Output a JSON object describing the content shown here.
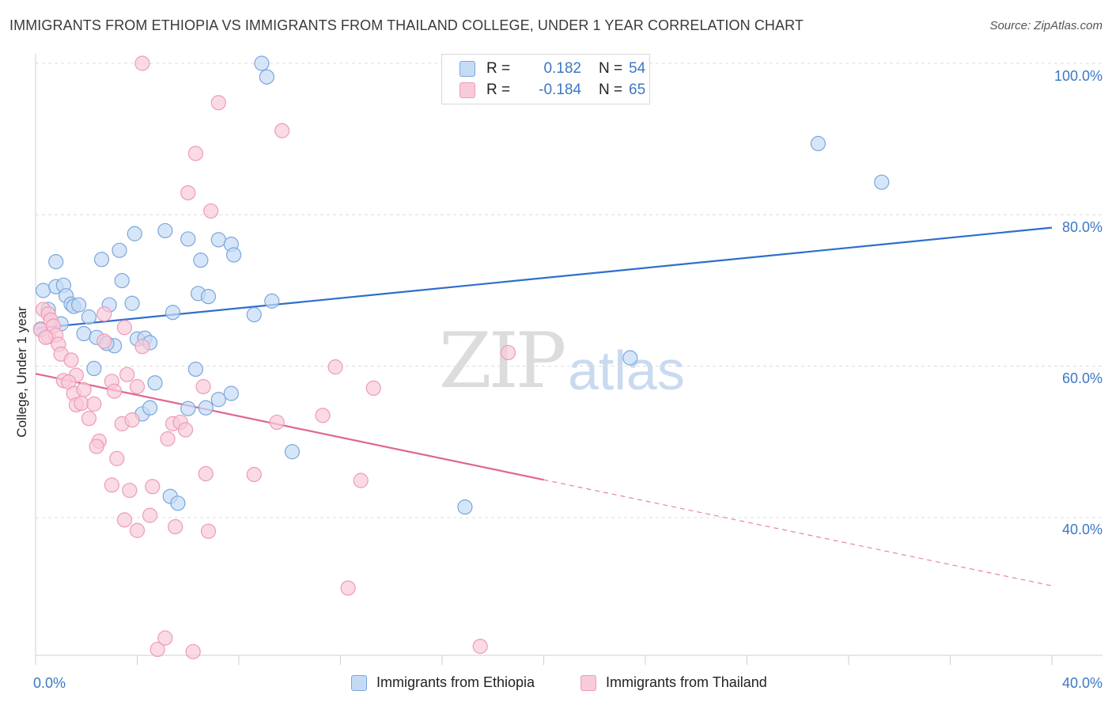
{
  "header": {
    "title": "IMMIGRANTS FROM ETHIOPIA VS IMMIGRANTS FROM THAILAND COLLEGE, UNDER 1 YEAR CORRELATION CHART",
    "source": "Source: ZipAtlas.com"
  },
  "watermark": {
    "zip": "ZIP",
    "atlas": "atlas"
  },
  "legend": {
    "rows": [
      {
        "r_label": "R =",
        "r_value": "0.182",
        "n_label": "N =",
        "n_value": "54"
      },
      {
        "r_label": "R =",
        "r_value": "-0.184",
        "n_label": "N =",
        "n_value": "65"
      }
    ]
  },
  "colors": {
    "ethiopia_fill": "#c5dbf5",
    "ethiopia_stroke": "#7aa6dd",
    "ethiopia_line": "#2e6fcc",
    "thailand_fill": "#f8cbd9",
    "thailand_stroke": "#ee9bb6",
    "thailand_line": "#e06690",
    "tick_text": "#3b78c4"
  },
  "chart_data": {
    "type": "scatter",
    "title": "IMMIGRANTS FROM ETHIOPIA VS IMMIGRANTS FROM THAILAND COLLEGE, UNDER 1 YEAR CORRELATION CHART",
    "xlabel": "",
    "ylabel": "College, Under 1 year",
    "xlim": [
      0,
      40
    ],
    "ylim": [
      20,
      102
    ],
    "x_tick_labels": [
      "0.0%",
      "40.0%"
    ],
    "y_ticks": [
      40,
      60,
      80,
      100
    ],
    "y_tick_labels": [
      "40.0%",
      "60.0%",
      "80.0%",
      "100.0%"
    ],
    "grid": true,
    "legend_position": "top-center",
    "series": [
      {
        "name": "Immigrants from Ethiopia",
        "r": 0.182,
        "n": 54,
        "trend": {
          "x": [
            0,
            40
          ],
          "y": [
            65.0,
            78.3
          ]
        },
        "points": [
          [
            0.3,
            70.0
          ],
          [
            0.5,
            67.5
          ],
          [
            0.8,
            70.5
          ],
          [
            0.8,
            73.8
          ],
          [
            1.1,
            70.7
          ],
          [
            1.2,
            69.3
          ],
          [
            1.4,
            68.2
          ],
          [
            1.5,
            67.9
          ],
          [
            1.7,
            68.1
          ],
          [
            2.1,
            66.5
          ],
          [
            1.9,
            64.3
          ],
          [
            2.4,
            63.8
          ],
          [
            2.3,
            59.7
          ],
          [
            2.6,
            74.1
          ],
          [
            2.9,
            68.1
          ],
          [
            3.1,
            62.7
          ],
          [
            3.3,
            75.3
          ],
          [
            3.4,
            71.3
          ],
          [
            3.8,
            68.3
          ],
          [
            3.9,
            77.5
          ],
          [
            4.0,
            63.6
          ],
          [
            4.3,
            63.7
          ],
          [
            4.2,
            53.7
          ],
          [
            4.5,
            63.1
          ],
          [
            4.7,
            57.8
          ],
          [
            4.5,
            54.5
          ],
          [
            5.1,
            77.9
          ],
          [
            5.4,
            67.1
          ],
          [
            5.3,
            42.8
          ],
          [
            5.6,
            41.9
          ],
          [
            6.0,
            76.8
          ],
          [
            6.0,
            54.4
          ],
          [
            6.3,
            59.6
          ],
          [
            6.4,
            69.6
          ],
          [
            6.5,
            74.0
          ],
          [
            6.8,
            69.2
          ],
          [
            6.7,
            54.5
          ],
          [
            7.2,
            76.7
          ],
          [
            7.2,
            55.6
          ],
          [
            7.7,
            76.1
          ],
          [
            7.8,
            74.7
          ],
          [
            7.7,
            56.4
          ],
          [
            8.6,
            66.8
          ],
          [
            8.9,
            100.0
          ],
          [
            9.1,
            98.2
          ],
          [
            9.3,
            68.6
          ],
          [
            10.1,
            48.7
          ],
          [
            16.9,
            41.4
          ],
          [
            23.4,
            61.1
          ],
          [
            30.8,
            89.4
          ],
          [
            33.3,
            84.3
          ],
          [
            0.2,
            64.9
          ],
          [
            1.0,
            65.6
          ],
          [
            2.8,
            63.0
          ]
        ]
      },
      {
        "name": "Immigrants from Thailand",
        "r": -0.184,
        "n": 65,
        "trend": {
          "x": [
            0,
            20
          ],
          "y": [
            59.0,
            45.0
          ]
        },
        "trend_dashed": {
          "x": [
            20,
            40
          ],
          "y": [
            45.0,
            31.0
          ]
        },
        "points": [
          [
            0.2,
            64.8
          ],
          [
            0.3,
            67.5
          ],
          [
            0.5,
            66.9
          ],
          [
            0.6,
            66.1
          ],
          [
            0.5,
            63.9
          ],
          [
            0.7,
            65.3
          ],
          [
            0.8,
            64.1
          ],
          [
            0.9,
            62.9
          ],
          [
            1.0,
            61.6
          ],
          [
            1.4,
            60.8
          ],
          [
            1.6,
            58.8
          ],
          [
            1.1,
            58.1
          ],
          [
            1.3,
            57.9
          ],
          [
            1.5,
            56.4
          ],
          [
            1.6,
            54.9
          ],
          [
            1.8,
            55.1
          ],
          [
            1.9,
            56.9
          ],
          [
            2.1,
            53.1
          ],
          [
            2.3,
            55.0
          ],
          [
            2.5,
            50.1
          ],
          [
            2.4,
            49.4
          ],
          [
            2.7,
            63.3
          ],
          [
            2.7,
            66.9
          ],
          [
            3.0,
            58.0
          ],
          [
            3.0,
            44.3
          ],
          [
            3.1,
            56.7
          ],
          [
            3.2,
            47.8
          ],
          [
            3.4,
            52.4
          ],
          [
            3.5,
            39.7
          ],
          [
            3.5,
            65.1
          ],
          [
            3.6,
            58.9
          ],
          [
            3.7,
            43.6
          ],
          [
            3.8,
            52.9
          ],
          [
            4.0,
            57.3
          ],
          [
            4.0,
            38.3
          ],
          [
            4.2,
            62.6
          ],
          [
            4.5,
            40.3
          ],
          [
            4.6,
            44.1
          ],
          [
            4.8,
            22.6
          ],
          [
            5.1,
            24.1
          ],
          [
            5.2,
            50.4
          ],
          [
            5.4,
            52.4
          ],
          [
            5.5,
            38.8
          ],
          [
            5.7,
            52.6
          ],
          [
            5.9,
            51.6
          ],
          [
            6.0,
            82.9
          ],
          [
            6.2,
            22.3
          ],
          [
            6.3,
            88.1
          ],
          [
            6.6,
            57.3
          ],
          [
            6.7,
            45.8
          ],
          [
            6.8,
            38.2
          ],
          [
            6.9,
            80.5
          ],
          [
            7.2,
            94.8
          ],
          [
            8.6,
            45.7
          ],
          [
            9.5,
            52.6
          ],
          [
            9.7,
            91.1
          ],
          [
            11.3,
            53.5
          ],
          [
            11.8,
            59.9
          ],
          [
            12.3,
            30.7
          ],
          [
            12.8,
            44.9
          ],
          [
            13.3,
            57.1
          ],
          [
            17.5,
            23.0
          ],
          [
            18.6,
            61.8
          ],
          [
            4.2,
            100.0
          ],
          [
            0.4,
            63.8
          ]
        ]
      }
    ]
  },
  "bottom_legend": {
    "ethiopia": "Immigrants from Ethiopia",
    "thailand": "Immigrants from Thailand"
  }
}
